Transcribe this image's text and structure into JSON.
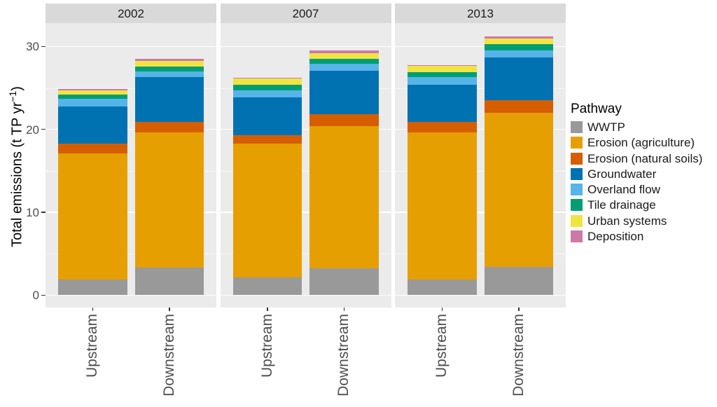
{
  "chart_data": {
    "type": "bar",
    "stacked": true,
    "faceted": true,
    "title": "",
    "ylabel": {
      "main": "Total emissions (t TP yr",
      "sup": "−1",
      "close": ")"
    },
    "legend_title": "Pathway",
    "legend_position": "right",
    "facets": [
      "2002",
      "2007",
      "2013"
    ],
    "categories": [
      "Upstream",
      "Downstream"
    ],
    "y_ticks": [
      0,
      10,
      20,
      30
    ],
    "y_minor_ticks": [
      5,
      15,
      25
    ],
    "ylim": [
      0,
      32.8
    ],
    "grid": "white-on-gray",
    "series": [
      {
        "name": "WWTP",
        "color": "#999999",
        "values": [
          [
            1.9,
            3.3
          ],
          [
            2.1,
            3.2
          ],
          [
            1.9,
            3.4
          ]
        ]
      },
      {
        "name": "Erosion (agriculture)",
        "color": "#E69F00",
        "values": [
          [
            15.2,
            16.3
          ],
          [
            16.2,
            17.2
          ],
          [
            17.7,
            18.6
          ]
        ]
      },
      {
        "name": "Erosion (natural soils)",
        "color": "#D55E00",
        "values": [
          [
            1.2,
            1.3
          ],
          [
            1.0,
            1.4
          ],
          [
            1.3,
            1.5
          ]
        ]
      },
      {
        "name": "Groundwater",
        "color": "#0072B2",
        "values": [
          [
            4.5,
            5.4
          ],
          [
            4.6,
            5.3
          ],
          [
            4.5,
            5.2
          ]
        ]
      },
      {
        "name": "Overland flow",
        "color": "#56B4E9",
        "values": [
          [
            0.9,
            0.7
          ],
          [
            0.8,
            0.8
          ],
          [
            0.9,
            0.8
          ]
        ]
      },
      {
        "name": "Tile drainage",
        "color": "#009E73",
        "values": [
          [
            0.5,
            0.6
          ],
          [
            0.7,
            0.6
          ],
          [
            0.6,
            0.8
          ]
        ]
      },
      {
        "name": "Urban systems",
        "color": "#F0E442",
        "values": [
          [
            0.5,
            0.7
          ],
          [
            0.8,
            0.7
          ],
          [
            0.8,
            0.7
          ]
        ]
      },
      {
        "name": "Deposition",
        "color": "#CC79A7",
        "values": [
          [
            0.2,
            0.2
          ],
          [
            0.05,
            0.3
          ],
          [
            0.05,
            0.25
          ]
        ]
      }
    ],
    "totals": [
      [
        24.9,
        28.5
      ],
      [
        26.25,
        29.5
      ],
      [
        27.75,
        31.25
      ]
    ],
    "palette": {
      "panel_bg": "#EBEBEB",
      "strip_bg": "#D9D9D9",
      "gridline": "#FFFFFF",
      "axis_text": "#4D4D4D",
      "strip_text": "#1A1A1A",
      "tick_mark": "#333333"
    }
  }
}
